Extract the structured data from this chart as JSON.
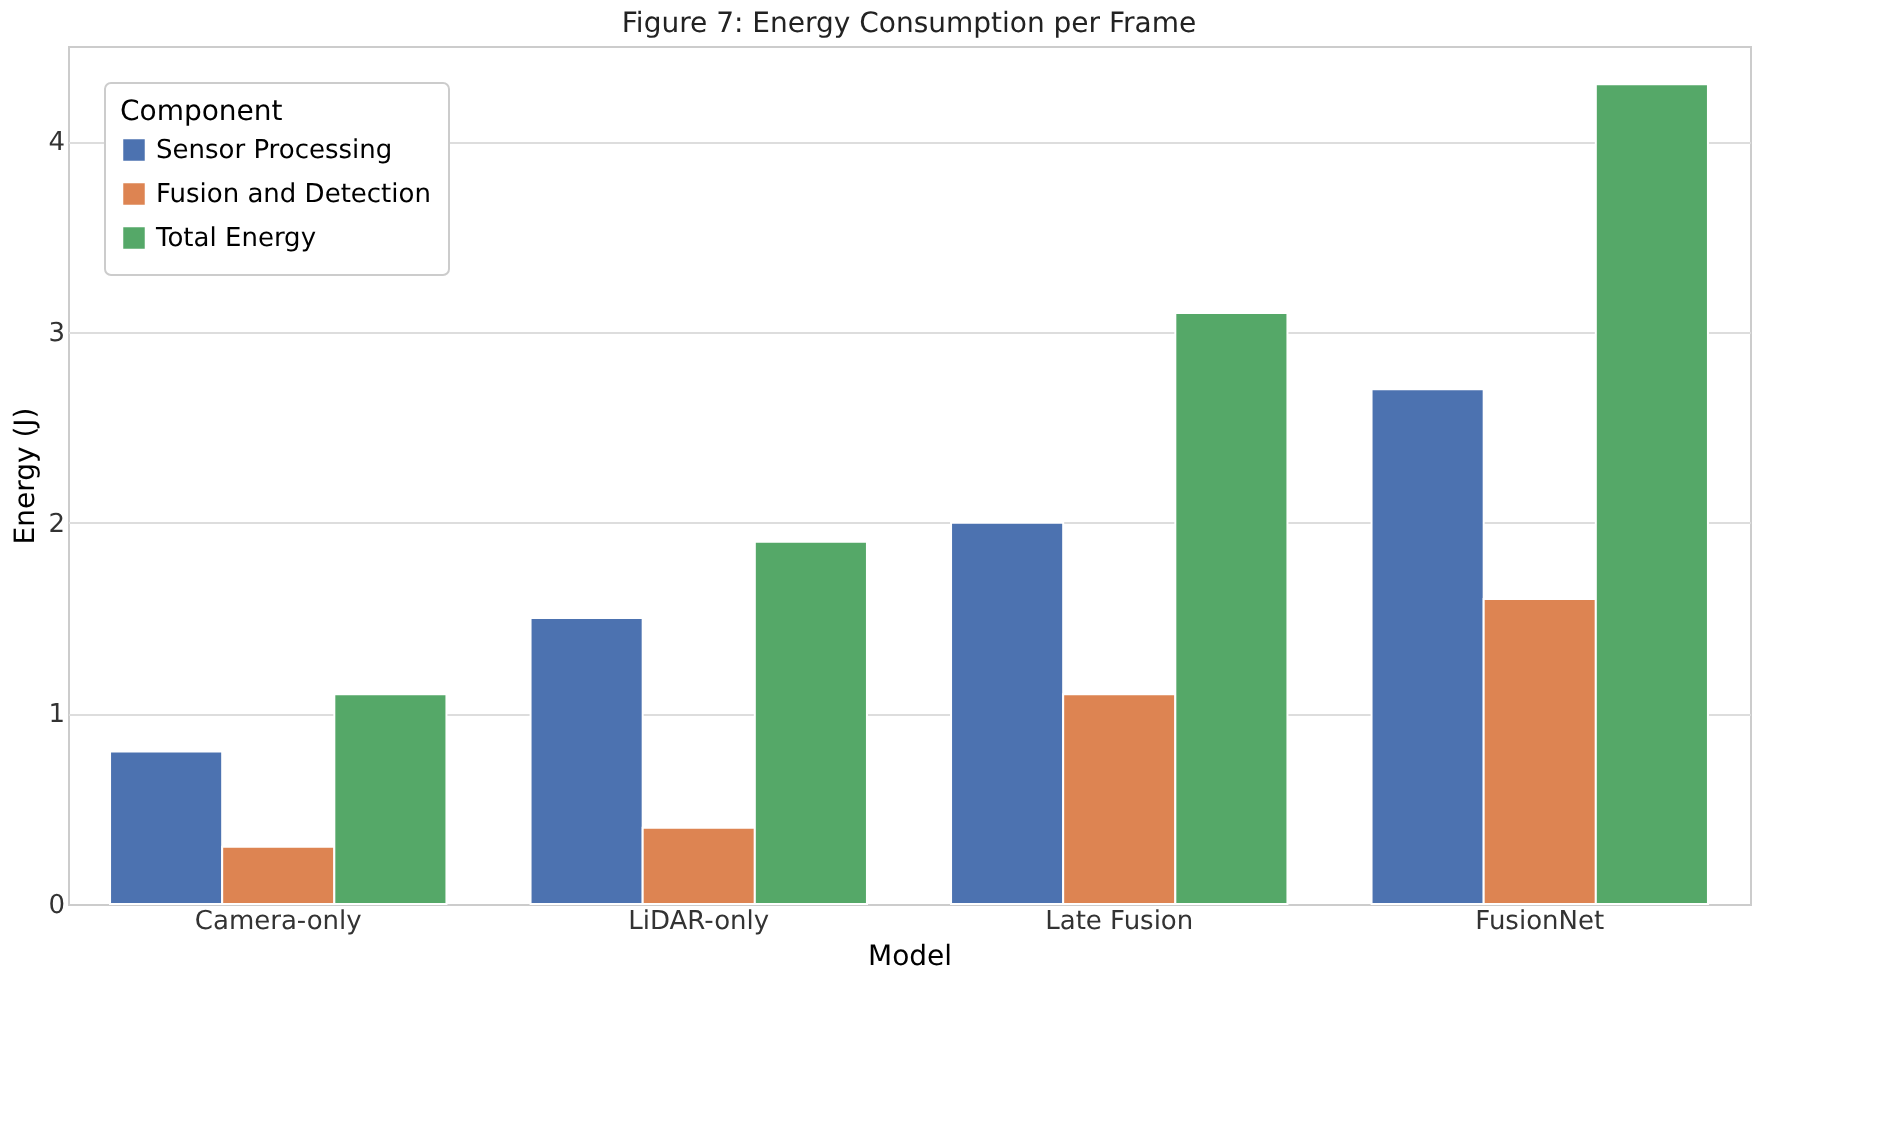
{
  "chart_data": {
    "type": "bar",
    "title": "Figure 7: Energy Consumption per Frame",
    "xlabel": "Model",
    "ylabel": "Energy (J)",
    "legend_title": "Component",
    "categories": [
      "Camera-only",
      "LiDAR-only",
      "Late Fusion",
      "FusionNet"
    ],
    "series": [
      {
        "name": "Sensor Processing",
        "color": "#4c72b0",
        "values": [
          0.8,
          1.5,
          2.0,
          2.7
        ]
      },
      {
        "name": "Fusion and Detection",
        "color": "#dd8452",
        "values": [
          0.3,
          0.4,
          1.1,
          1.6
        ]
      },
      {
        "name": "Total Energy",
        "color": "#55a868",
        "values": [
          1.1,
          1.9,
          3.1,
          4.3
        ]
      }
    ],
    "ylim": [
      0,
      4.5
    ],
    "yticks": [
      0,
      1,
      2,
      3,
      4
    ],
    "grid": "y",
    "legend": "top left"
  }
}
